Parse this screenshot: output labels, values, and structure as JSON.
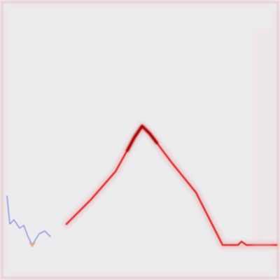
{
  "colors": {
    "background": "#ececee",
    "frame": "#e9b3b8",
    "positive_strong": "#9a0000",
    "positive": "#d21c1c",
    "positive_soft": "#ee7a7a",
    "negative": "#7f86d8",
    "accent_warm": "#f0a77c"
  }
}
